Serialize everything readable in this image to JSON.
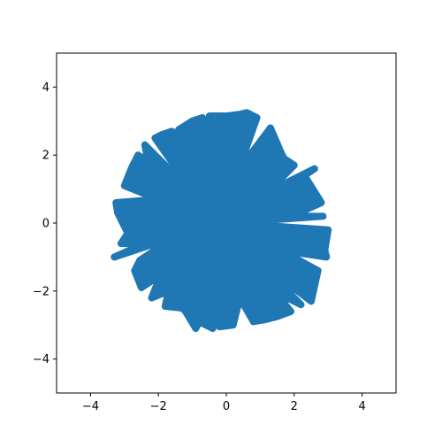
{
  "chart_data": {
    "type": "scatter",
    "title": "",
    "xlabel": "",
    "ylabel": "",
    "xlim": [
      -5,
      5
    ],
    "ylim": [
      -5,
      5
    ],
    "xticks": [
      -4,
      -2,
      0,
      2,
      4
    ],
    "yticks": [
      -4,
      -2,
      0,
      2,
      4
    ],
    "xtick_labels": [
      "−4",
      "−2",
      "0",
      "2",
      "4"
    ],
    "ytick_labels": [
      "−4",
      "−2",
      "0",
      "2",
      "4"
    ],
    "grid": false,
    "legend": "none",
    "marker_color": "#1f77b4",
    "series": [
      {
        "points": [
          [
            -3.3,
            -1.0
          ],
          [
            -3.25,
            0.6
          ],
          [
            -3.2,
            0.3
          ],
          [
            -3.1,
            -0.6
          ],
          [
            -3.0,
            1.1
          ],
          [
            -2.9,
            -0.3
          ],
          [
            -2.8,
            1.6
          ],
          [
            -2.7,
            -1.4
          ],
          [
            -2.6,
            2.0
          ],
          [
            -2.55,
            -1.1
          ],
          [
            -2.5,
            -1.9
          ],
          [
            -2.4,
            2.3
          ],
          [
            -2.3,
            1.8
          ],
          [
            -2.2,
            -2.2
          ],
          [
            -2.1,
            2.5
          ],
          [
            -2.0,
            -1.7
          ],
          [
            -1.9,
            2.6
          ],
          [
            -1.8,
            -2.45
          ],
          [
            -1.7,
            -2.0
          ],
          [
            -1.6,
            2.7
          ],
          [
            -1.4,
            2.75
          ],
          [
            -1.3,
            -2.5
          ],
          [
            -1.2,
            -2.6
          ],
          [
            -1.0,
            3.0
          ],
          [
            -0.9,
            -3.1
          ],
          [
            -0.8,
            -2.9
          ],
          [
            -0.7,
            3.1
          ],
          [
            -0.5,
            3.15
          ],
          [
            -0.4,
            -3.1
          ],
          [
            -0.2,
            -3.05
          ],
          [
            0.0,
            3.15
          ],
          [
            0.2,
            -3.0
          ],
          [
            0.4,
            3.2
          ],
          [
            0.6,
            3.25
          ],
          [
            0.8,
            -2.9
          ],
          [
            0.9,
            3.1
          ],
          [
            1.1,
            -2.85
          ],
          [
            1.3,
            2.8
          ],
          [
            1.5,
            -2.75
          ],
          [
            1.6,
            2.1
          ],
          [
            1.7,
            1.9
          ],
          [
            1.9,
            -2.6
          ],
          [
            2.0,
            1.7
          ],
          [
            2.2,
            -2.4
          ],
          [
            2.3,
            1.4
          ],
          [
            2.5,
            -2.3
          ],
          [
            2.6,
            1.6
          ],
          [
            2.7,
            -1.4
          ],
          [
            2.8,
            0.6
          ],
          [
            2.9,
            -0.8
          ],
          [
            3.0,
            -0.2
          ],
          [
            2.95,
            -1.0
          ],
          [
            2.85,
            0.2
          ],
          [
            1.6,
            -0.8
          ],
          [
            1.2,
            0.9
          ],
          [
            0.8,
            -1.0
          ],
          [
            0.3,
            1.4
          ],
          [
            -0.3,
            -0.8
          ],
          [
            -0.9,
            0.8
          ],
          [
            -1.5,
            -0.4
          ],
          [
            -2.0,
            0.7
          ],
          [
            -2.4,
            -0.6
          ],
          [
            0.0,
            0.0
          ],
          [
            -0.5,
            2.2
          ],
          [
            0.7,
            2.0
          ],
          [
            1.9,
            0.2
          ],
          [
            -1.9,
            -1.5
          ],
          [
            0.4,
            -2.2
          ],
          [
            -1.1,
            1.8
          ],
          [
            1.4,
            -2.0
          ]
        ]
      }
    ]
  }
}
